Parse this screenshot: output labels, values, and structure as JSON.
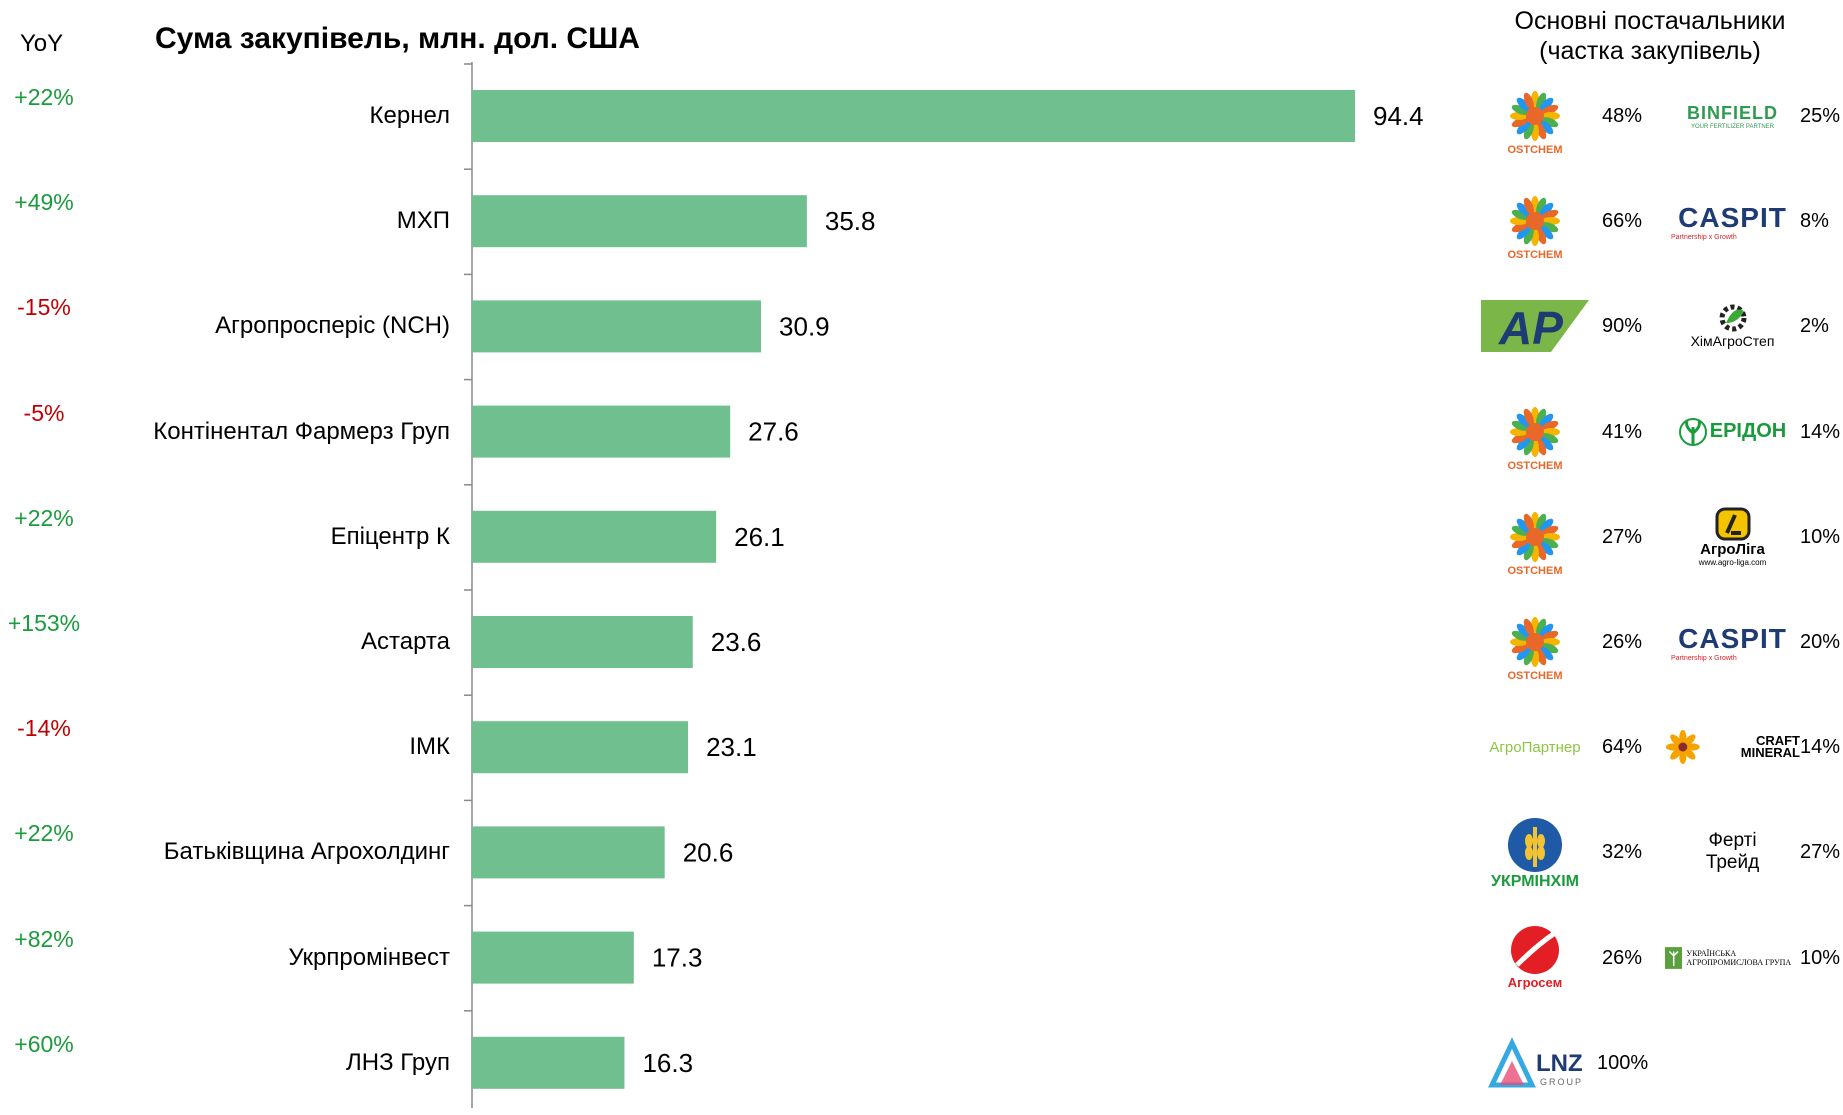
{
  "header": {
    "yoy_label": "YoY",
    "title": "Сума закупівель, млн. дол. США",
    "suppliers_title_line1": "Основні постачальники",
    "suppliers_title_line2": "(частка закупівель)"
  },
  "colors": {
    "bar": "#70bf8f",
    "positive": "#1a9b3c",
    "negative": "#c00000"
  },
  "chart_data": {
    "type": "bar",
    "orientation": "horizontal",
    "title": "Сума закупівель, млн. дол. США",
    "categories": [
      "Кернел",
      "МХП",
      "Агропросперіс (NCH)",
      "Контінентал Фармерз Груп",
      "Епіцентр К",
      "Астарта",
      "ІМК",
      "Батьківщина Агрохолдинг",
      "Укрпромінвест",
      "ЛНЗ Груп"
    ],
    "values": [
      94.4,
      35.8,
      30.9,
      27.6,
      26.1,
      23.6,
      23.1,
      20.6,
      17.3,
      16.3
    ],
    "value_labels": [
      "94.4",
      "35.8",
      "30.9",
      "27.6",
      "26.1",
      "23.6",
      "23.1",
      "20.6",
      "17.3",
      "16.3"
    ],
    "yoy": [
      "+22%",
      "+49%",
      "-15%",
      "-5%",
      "+22%",
      "+153%",
      "-14%",
      "+22%",
      "+82%",
      "+60%"
    ],
    "xlim": [
      0,
      100
    ]
  },
  "suppliers": [
    {
      "s1": "OSTCHEM",
      "p1": "48%",
      "s2": "BINFIELD",
      "p2": "25%"
    },
    {
      "s1": "OSTCHEM",
      "p1": "66%",
      "s2": "CASPIT",
      "p2": "8%"
    },
    {
      "s1": "AP",
      "p1": "90%",
      "s2": "ХімАгроСтеп",
      "p2": "2%"
    },
    {
      "s1": "OSTCHEM",
      "p1": "41%",
      "s2": "ЕРІДОН",
      "p2": "14%"
    },
    {
      "s1": "OSTCHEM",
      "p1": "27%",
      "s2": "АгроЛіга",
      "p2": "10%"
    },
    {
      "s1": "OSTCHEM",
      "p1": "26%",
      "s2": "CASPIT",
      "p2": "20%"
    },
    {
      "s1": "АгроПартнер",
      "p1": "64%",
      "s2": "CRAFT MINERAL",
      "p2": "14%"
    },
    {
      "s1": "УКРМІНХІМ",
      "p1": "32%",
      "s2": "Ферті Трейд",
      "p2": "27%"
    },
    {
      "s1": "Агросем",
      "p1": "26%",
      "s2": "УКРАЇНСЬКА АГРОПРОМИСЛОВА ГРУПА",
      "p2": "10%"
    },
    {
      "s1": "LNZ",
      "p1": "100%",
      "s2": "",
      "p2": ""
    }
  ],
  "logo_extras": {
    "binfield_tag": "YOUR FERTILIZER PARTNER",
    "caspit_tag": "Partnership x Growth",
    "agroliga_site": "www.agro-liga.com",
    "lnz_sub": "GROUP",
    "ferti_line1": "Ферті",
    "ferti_line2": "Трейд"
  }
}
